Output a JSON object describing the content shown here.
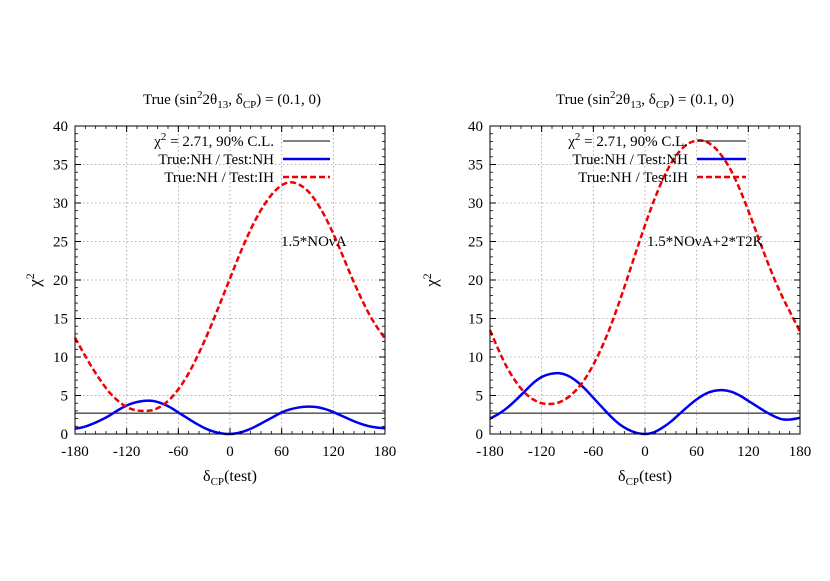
{
  "colors": {
    "grid": "#9a9a9a",
    "threshold": "#000000",
    "nh": "#0000ee",
    "ih": "#ee0000",
    "axis": "#000000"
  },
  "chart_data": [
    {
      "type": "line",
      "title": "True (sin²2θ₁₃, δCP) = (0.1, 0)",
      "title_parts": {
        "prefix": "True (sin",
        "sup": "2",
        "mid": "2θ",
        "sub1": "13",
        "sep": ", δ",
        "sub2": "CP",
        "suffix": ") = (0.1, 0)"
      },
      "xlabel": "δCP(test)",
      "xlabel_parts": {
        "main": "δ",
        "sub": "CP",
        "rest": "(test)"
      },
      "ylabel": "χ²",
      "ylabel_parts": {
        "main": "χ",
        "sup": "2"
      },
      "xlim": [
        -180,
        180
      ],
      "ylim": [
        0,
        40
      ],
      "xticks": [
        "-180",
        "-120",
        "-60",
        "0",
        "60",
        "120",
        "180"
      ],
      "yticks": [
        "0",
        "5",
        "10",
        "15",
        "20",
        "25",
        "30",
        "35",
        "40"
      ],
      "grid": true,
      "legend_position": "top",
      "annotation": "1.5*NOνA",
      "series": [
        {
          "name": "χ² = 2.71, 90% C.L.",
          "legend_parts": {
            "main": "χ",
            "sup": "2",
            "rest": " = 2.71, 90% C.L."
          },
          "style": "threshold",
          "x": [
            -180,
            180
          ],
          "y": [
            2.71,
            2.71
          ]
        },
        {
          "name": "True:NH / Test:NH",
          "style": "nh",
          "x": [
            -180,
            -170,
            -160,
            -150,
            -140,
            -130,
            -120,
            -110,
            -100,
            -90,
            -80,
            -70,
            -60,
            -50,
            -40,
            -30,
            -20,
            -10,
            0,
            10,
            20,
            30,
            40,
            50,
            60,
            70,
            80,
            90,
            100,
            110,
            120,
            130,
            140,
            150,
            160,
            170,
            180
          ],
          "y": [
            0.7,
            0.9,
            1.3,
            1.8,
            2.4,
            3.1,
            3.7,
            4.1,
            4.3,
            4.3,
            4.0,
            3.5,
            2.8,
            2.1,
            1.4,
            0.8,
            0.35,
            0.08,
            0.0,
            0.15,
            0.5,
            1.0,
            1.6,
            2.2,
            2.8,
            3.2,
            3.45,
            3.55,
            3.5,
            3.25,
            2.85,
            2.35,
            1.85,
            1.4,
            1.05,
            0.85,
            0.75
          ]
        },
        {
          "name": "True:NH / Test:IH",
          "style": "ih",
          "x": [
            -180,
            -170,
            -160,
            -150,
            -140,
            -130,
            -120,
            -110,
            -100,
            -90,
            -80,
            -70,
            -60,
            -50,
            -40,
            -30,
            -20,
            -10,
            0,
            10,
            20,
            30,
            40,
            50,
            60,
            70,
            80,
            90,
            100,
            110,
            120,
            130,
            140,
            150,
            160,
            170,
            180
          ],
          "y": [
            12.5,
            10.5,
            8.6,
            6.9,
            5.4,
            4.3,
            3.5,
            3.1,
            3.0,
            3.1,
            3.6,
            4.5,
            5.8,
            7.5,
            9.6,
            12.0,
            14.6,
            17.4,
            20.2,
            23.0,
            25.6,
            27.9,
            29.8,
            31.3,
            32.3,
            32.7,
            32.4,
            31.6,
            30.2,
            28.3,
            26.0,
            23.4,
            20.7,
            18.2,
            15.9,
            14.0,
            12.4
          ]
        }
      ]
    },
    {
      "type": "line",
      "title": "True (sin²2θ₁₃, δCP) = (0.1, 0)",
      "title_parts": {
        "prefix": "True (sin",
        "sup": "2",
        "mid": "2θ",
        "sub1": "13",
        "sep": ", δ",
        "sub2": "CP",
        "suffix": ") = (0.1, 0)"
      },
      "xlabel": "δCP(test)",
      "xlabel_parts": {
        "main": "δ",
        "sub": "CP",
        "rest": "(test)"
      },
      "ylabel": "χ²",
      "ylabel_parts": {
        "main": "χ",
        "sup": "2"
      },
      "xlim": [
        -180,
        180
      ],
      "ylim": [
        0,
        40
      ],
      "xticks": [
        "-180",
        "-120",
        "-60",
        "0",
        "60",
        "120",
        "180"
      ],
      "yticks": [
        "0",
        "5",
        "10",
        "15",
        "20",
        "25",
        "30",
        "35",
        "40"
      ],
      "grid": true,
      "legend_position": "top",
      "annotation": "1.5*NOνA+2*T2K",
      "series": [
        {
          "name": "χ² = 2.71, 90% C.L.",
          "legend_parts": {
            "main": "χ",
            "sup": "2",
            "rest": " = 2.71, 90% C.L."
          },
          "style": "threshold",
          "x": [
            -180,
            180
          ],
          "y": [
            2.71,
            2.71
          ]
        },
        {
          "name": "True:NH / Test:NH",
          "style": "nh",
          "x": [
            -180,
            -170,
            -160,
            -150,
            -140,
            -130,
            -120,
            -110,
            -100,
            -90,
            -80,
            -70,
            -60,
            -50,
            -40,
            -30,
            -20,
            -10,
            0,
            10,
            20,
            30,
            40,
            50,
            60,
            70,
            80,
            90,
            100,
            110,
            120,
            130,
            140,
            150,
            160,
            170,
            180
          ],
          "y": [
            2.0,
            2.6,
            3.4,
            4.4,
            5.5,
            6.6,
            7.4,
            7.8,
            7.9,
            7.6,
            6.9,
            5.9,
            4.7,
            3.5,
            2.3,
            1.3,
            0.6,
            0.15,
            0.0,
            0.2,
            0.8,
            1.6,
            2.6,
            3.6,
            4.5,
            5.2,
            5.6,
            5.7,
            5.5,
            5.0,
            4.3,
            3.6,
            2.9,
            2.3,
            1.9,
            1.9,
            2.1
          ]
        },
        {
          "name": "True:NH / Test:IH",
          "style": "ih",
          "x": [
            -180,
            -170,
            -160,
            -150,
            -140,
            -130,
            -120,
            -110,
            -100,
            -90,
            -80,
            -70,
            -60,
            -50,
            -40,
            -30,
            -20,
            -10,
            0,
            10,
            20,
            30,
            40,
            50,
            60,
            70,
            80,
            90,
            100,
            110,
            120,
            130,
            140,
            150,
            160,
            170,
            180
          ],
          "y": [
            13.5,
            10.9,
            8.6,
            6.8,
            5.4,
            4.5,
            4.0,
            3.9,
            4.1,
            4.7,
            5.7,
            7.1,
            9.0,
            11.3,
            14.0,
            17.1,
            20.4,
            23.8,
            27.1,
            30.2,
            32.9,
            35.1,
            36.7,
            37.7,
            38.1,
            38.0,
            37.3,
            36.0,
            34.2,
            31.8,
            29.0,
            26.0,
            23.0,
            20.2,
            17.7,
            15.5,
            13.3
          ]
        }
      ]
    }
  ]
}
